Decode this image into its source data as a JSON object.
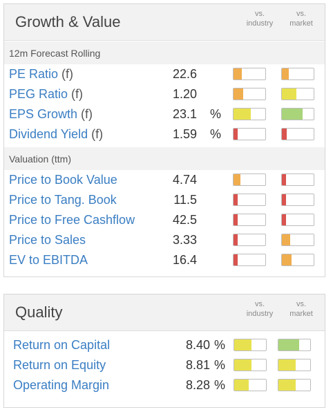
{
  "growth": {
    "title": "Growth & Value",
    "col_industry": [
      "vs.",
      "industry"
    ],
    "col_market": [
      "vs.",
      "market"
    ],
    "sections": [
      {
        "label": "12m Forecast Rolling",
        "rows": [
          {
            "label": "PE Ratio",
            "suffix": " (f)",
            "value": "22.6",
            "unit": "",
            "industry": {
              "level": 0.25,
              "color": "#f0ad4e"
            },
            "market": {
              "level": 0.22,
              "color": "#f0ad4e"
            }
          },
          {
            "label": "PEG Ratio",
            "suffix": " (f)",
            "value": "1.20",
            "unit": "",
            "industry": {
              "level": 0.3,
              "color": "#f0ad4e"
            },
            "market": {
              "level": 0.45,
              "color": "#e8e14f"
            }
          },
          {
            "label": "EPS Growth",
            "suffix": " (f)",
            "value": "23.1",
            "unit": "%",
            "industry": {
              "level": 0.55,
              "color": "#e8e14f"
            },
            "market": {
              "level": 0.65,
              "color": "#a9d47a"
            }
          },
          {
            "label": "Dividend Yield",
            "suffix": " (f)",
            "value": "1.59",
            "unit": "%",
            "industry": {
              "level": 0.12,
              "color": "#d9534f"
            },
            "market": {
              "level": 0.15,
              "color": "#d9534f"
            }
          }
        ]
      },
      {
        "label": "Valuation (ttm)",
        "rows": [
          {
            "label": "Price to Book Value",
            "suffix": "",
            "value": "4.74",
            "unit": "",
            "industry": {
              "level": 0.22,
              "color": "#f0ad4e"
            },
            "market": {
              "level": 0.12,
              "color": "#d9534f"
            }
          },
          {
            "label": "Price to Tang. Book",
            "suffix": "",
            "value": "11.5",
            "unit": "",
            "industry": {
              "level": 0.14,
              "color": "#d9534f"
            },
            "market": {
              "level": 0.12,
              "color": "#d9534f"
            }
          },
          {
            "label": "Price to Free Cashflow",
            "suffix": "",
            "value": "42.5",
            "unit": "",
            "industry": {
              "level": 0.14,
              "color": "#d9534f"
            },
            "market": {
              "level": 0.14,
              "color": "#d9534f"
            }
          },
          {
            "label": "Price to Sales",
            "suffix": "",
            "value": "3.33",
            "unit": "",
            "industry": {
              "level": 0.12,
              "color": "#d9534f"
            },
            "market": {
              "level": 0.25,
              "color": "#f0ad4e"
            }
          },
          {
            "label": "EV to EBITDA",
            "suffix": "",
            "value": "16.4",
            "unit": "",
            "industry": {
              "level": 0.12,
              "color": "#d9534f"
            },
            "market": {
              "level": 0.3,
              "color": "#f0ad4e"
            }
          }
        ]
      }
    ]
  },
  "quality": {
    "title": "Quality",
    "col_industry": [
      "vs.",
      "industry"
    ],
    "col_market": [
      "vs.",
      "market"
    ],
    "rows": [
      {
        "label": "Return on Capital",
        "suffix": "",
        "value": "8.40",
        "unit": "%",
        "industry": {
          "level": 0.55,
          "color": "#e8e14f"
        },
        "market": {
          "level": 0.65,
          "color": "#a9d47a"
        }
      },
      {
        "label": "Return on Equity",
        "suffix": "",
        "value": "8.81",
        "unit": "%",
        "industry": {
          "level": 0.55,
          "color": "#e8e14f"
        },
        "market": {
          "level": 0.55,
          "color": "#e8e14f"
        }
      },
      {
        "label": "Operating Margin",
        "suffix": "",
        "value": "8.28",
        "unit": "%",
        "industry": {
          "level": 0.45,
          "color": "#e8e14f"
        },
        "market": {
          "level": 0.55,
          "color": "#e8e14f"
        }
      }
    ]
  }
}
